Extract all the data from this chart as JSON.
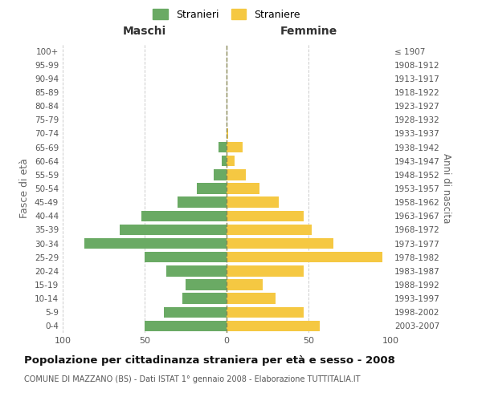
{
  "age_groups": [
    "0-4",
    "5-9",
    "10-14",
    "15-19",
    "20-24",
    "25-29",
    "30-34",
    "35-39",
    "40-44",
    "45-49",
    "50-54",
    "55-59",
    "60-64",
    "65-69",
    "70-74",
    "75-79",
    "80-84",
    "85-89",
    "90-94",
    "95-99",
    "100+"
  ],
  "birth_years": [
    "2003-2007",
    "1998-2002",
    "1993-1997",
    "1988-1992",
    "1983-1987",
    "1978-1982",
    "1973-1977",
    "1968-1972",
    "1963-1967",
    "1958-1962",
    "1953-1957",
    "1948-1952",
    "1943-1947",
    "1938-1942",
    "1933-1937",
    "1928-1932",
    "1923-1927",
    "1918-1922",
    "1913-1917",
    "1908-1912",
    "≤ 1907"
  ],
  "males": [
    50,
    38,
    27,
    25,
    37,
    50,
    87,
    65,
    52,
    30,
    18,
    8,
    3,
    5,
    0,
    0,
    0,
    0,
    0,
    0,
    0
  ],
  "females": [
    57,
    47,
    30,
    22,
    47,
    95,
    65,
    52,
    47,
    32,
    20,
    12,
    5,
    10,
    1,
    0,
    0,
    0,
    0,
    0,
    0
  ],
  "male_color": "#6aaa64",
  "female_color": "#f5c842",
  "center_line_color": "#888855",
  "background_color": "#ffffff",
  "grid_color": "#cccccc",
  "title": "Popolazione per cittadinanza straniera per età e sesso - 2008",
  "subtitle": "COMUNE DI MAZZANO (BS) - Dati ISTAT 1° gennaio 2008 - Elaborazione TUTTITALIA.IT",
  "xlabel_left": "Maschi",
  "xlabel_right": "Femmine",
  "ylabel_left": "Fasce di età",
  "ylabel_right": "Anni di nascita",
  "legend_male": "Stranieri",
  "legend_female": "Straniere",
  "xlim": 100
}
